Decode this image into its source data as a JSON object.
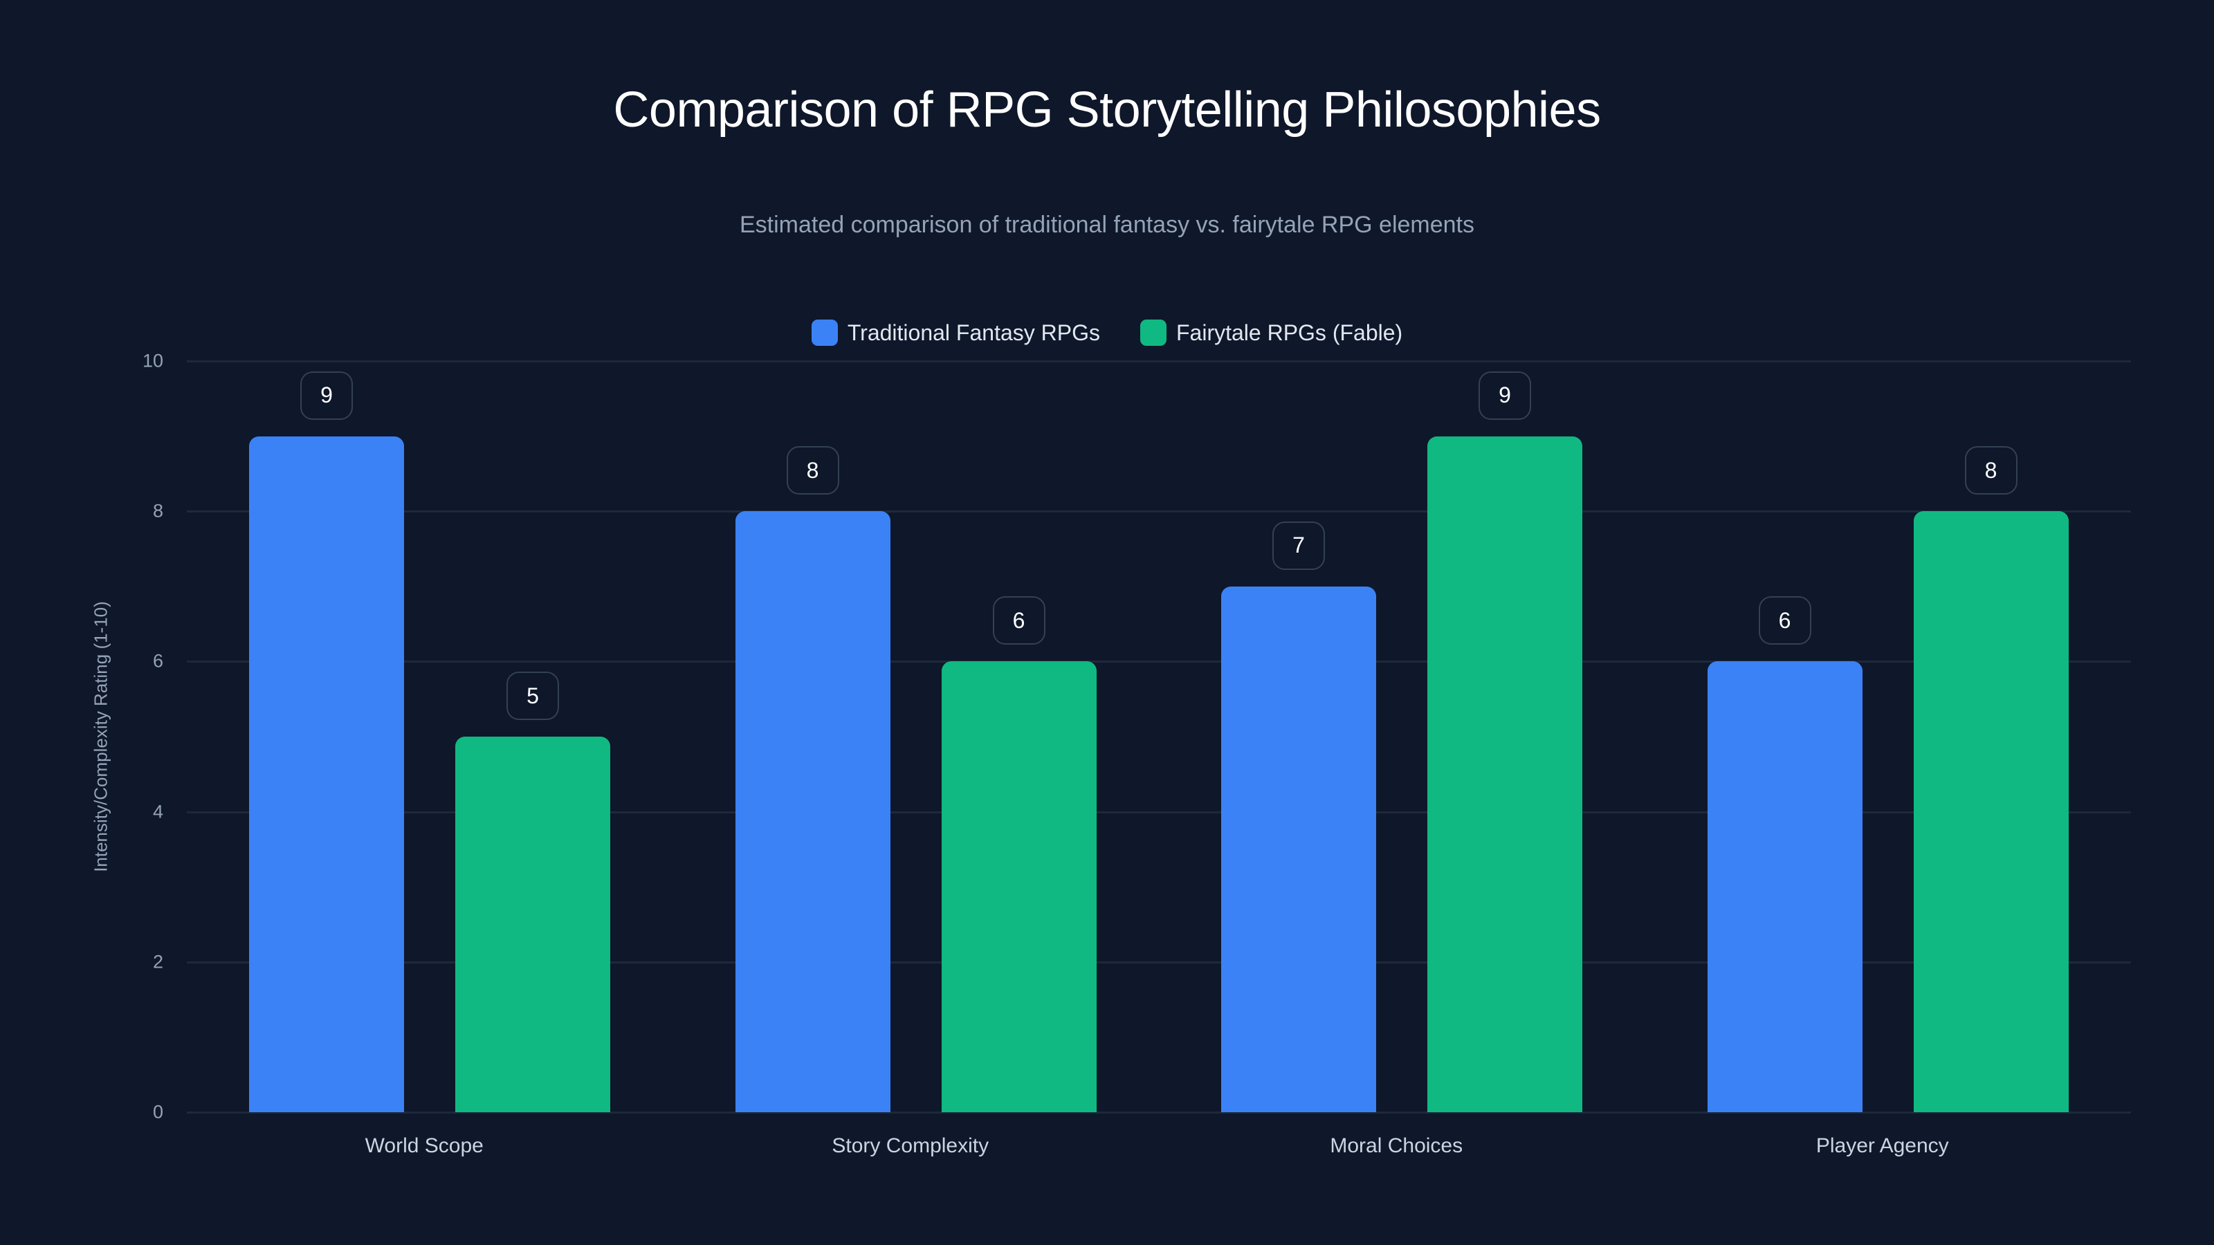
{
  "header": {
    "title": "Comparison of RPG Storytelling Philosophies",
    "subtitle": "Estimated comparison of traditional fantasy vs. fairytale RPG elements"
  },
  "legend": [
    {
      "label": "Traditional Fantasy RPGs",
      "color": "#3b82f6"
    },
    {
      "label": "Fairytale RPGs (Fable)",
      "color": "#10b981"
    }
  ],
  "axes": {
    "y_title": "Intensity/Complexity Rating (1-10)",
    "y_ticks": [
      "0",
      "2",
      "4",
      "6",
      "8",
      "10"
    ]
  },
  "colors": {
    "background": "#0f172a",
    "grid": "#1e293b",
    "badge_border": "#334155",
    "traditional": "#3b82f6",
    "fairytale": "#10b981"
  },
  "chart_data": {
    "type": "bar",
    "title": "Comparison of RPG Storytelling Philosophies",
    "subtitle": "Estimated comparison of traditional fantasy vs. fairytale RPG elements",
    "categories": [
      "World Scope",
      "Story Complexity",
      "Moral Choices",
      "Player Agency"
    ],
    "series": [
      {
        "name": "Traditional Fantasy RPGs",
        "color": "#3b82f6",
        "values": [
          9,
          8,
          7,
          6
        ]
      },
      {
        "name": "Fairytale RPGs (Fable)",
        "color": "#10b981",
        "values": [
          5,
          6,
          9,
          8
        ]
      }
    ],
    "xlabel": "",
    "ylabel": "Intensity/Complexity Rating (1-10)",
    "ylim": [
      0,
      10
    ],
    "yticks": [
      0,
      2,
      4,
      6,
      8,
      10
    ],
    "grid": true,
    "legend_position": "top-center",
    "data_labels": true
  }
}
